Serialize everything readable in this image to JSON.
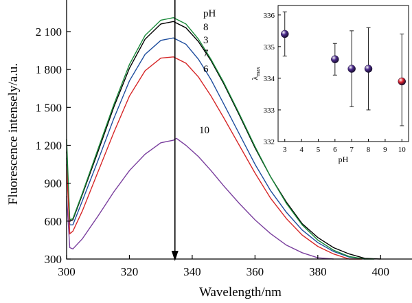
{
  "chart_data": [
    {
      "type": "line",
      "xlabel": "Wavelength/nm",
      "ylabel": "Fluorescence intensely/a.u.",
      "xlim": [
        300,
        410
      ],
      "ylim": [
        300,
        2350
      ],
      "xticks": [
        300,
        320,
        340,
        360,
        380,
        400
      ],
      "xtick_labels": [
        "300",
        "320",
        "340",
        "360",
        "380",
        "400"
      ],
      "yticks": [
        300,
        600,
        900,
        1200,
        1500,
        1800,
        2100
      ],
      "ytick_labels": [
        "300",
        "600",
        "900",
        "1 200",
        "1 500",
        "1 800",
        "2 100"
      ],
      "legend_title": "pH",
      "annotation": {
        "type": "vertical-arrow",
        "x": 334.5
      },
      "series": [
        {
          "name": "8",
          "color": "#000000",
          "x": [
            300,
            301,
            302,
            305,
            310,
            315,
            320,
            325,
            330,
            334,
            338,
            342,
            346,
            350,
            355,
            360,
            365,
            370,
            375,
            380,
            385,
            390,
            395,
            400
          ],
          "y": [
            1150,
            600,
            610,
            810,
            1150,
            1500,
            1810,
            2040,
            2160,
            2180,
            2130,
            2020,
            1870,
            1690,
            1440,
            1180,
            950,
            750,
            580,
            470,
            390,
            340,
            305,
            290
          ]
        },
        {
          "name": "3",
          "color": "#1f4e9e",
          "x": [
            300,
            301,
            302,
            305,
            310,
            315,
            320,
            325,
            330,
            334,
            338,
            342,
            346,
            350,
            355,
            360,
            365,
            370,
            375,
            380,
            385,
            390,
            395
          ],
          "y": [
            1100,
            570,
            570,
            760,
            1080,
            1410,
            1710,
            1920,
            2030,
            2050,
            2000,
            1880,
            1720,
            1530,
            1290,
            1050,
            840,
            670,
            530,
            430,
            360,
            315,
            290
          ]
        },
        {
          "name": "7",
          "color": "#1a8a3a",
          "x": [
            300,
            301,
            302,
            305,
            310,
            315,
            320,
            325,
            330,
            334,
            338,
            342,
            346,
            350,
            355,
            360,
            365,
            370,
            375,
            380,
            385,
            390,
            395,
            398
          ],
          "y": [
            1250,
            610,
            620,
            820,
            1170,
            1520,
            1840,
            2070,
            2190,
            2210,
            2160,
            2040,
            1880,
            1700,
            1450,
            1190,
            950,
            740,
            570,
            450,
            370,
            320,
            295,
            285
          ]
        },
        {
          "name": "6",
          "color": "#d62728",
          "x": [
            300,
            301,
            302,
            305,
            310,
            315,
            320,
            325,
            330,
            334,
            338,
            342,
            346,
            350,
            355,
            360,
            365,
            370,
            375,
            380,
            385,
            390,
            394
          ],
          "y": [
            1050,
            500,
            520,
            680,
            990,
            1300,
            1590,
            1790,
            1890,
            1900,
            1850,
            1740,
            1590,
            1420,
            1200,
            980,
            780,
            620,
            490,
            400,
            340,
            300,
            285
          ]
        },
        {
          "name": "10",
          "color": "#7a3f9e",
          "x": [
            300,
            301,
            302,
            305,
            310,
            315,
            320,
            325,
            330,
            334,
            335,
            338,
            342,
            346,
            350,
            355,
            360,
            365,
            370,
            375,
            380,
            385
          ],
          "y": [
            800,
            390,
            380,
            460,
            640,
            830,
            1000,
            1130,
            1220,
            1240,
            1255,
            1200,
            1110,
            1000,
            880,
            740,
            610,
            500,
            410,
            350,
            310,
            290
          ]
        }
      ]
    },
    {
      "type": "scatter",
      "inset": true,
      "xlabel": "pH",
      "ylabel": "λmax",
      "ylabel_main": "λ",
      "ylabel_sub": "max",
      "xlim": [
        2.6,
        10.4
      ],
      "ylim": [
        332,
        336.3
      ],
      "xticks": [
        3,
        4,
        5,
        6,
        7,
        8,
        9,
        10
      ],
      "yticks": [
        332,
        333,
        334,
        335,
        336
      ],
      "points": [
        {
          "x": 3,
          "y": 335.4,
          "err_low": 334.7,
          "err_high": 336.1,
          "color": "#4b2a8c"
        },
        {
          "x": 6,
          "y": 334.6,
          "err_low": 334.1,
          "err_high": 335.1,
          "color": "#4b2a8c"
        },
        {
          "x": 7,
          "y": 334.3,
          "err_low": 333.1,
          "err_high": 335.5,
          "color": "#4b2a8c"
        },
        {
          "x": 8,
          "y": 334.3,
          "err_low": 333.0,
          "err_high": 335.6,
          "color": "#4b2a8c"
        },
        {
          "x": 10,
          "y": 333.9,
          "err_low": 332.5,
          "err_high": 335.4,
          "color": "#e0202a"
        }
      ]
    }
  ]
}
